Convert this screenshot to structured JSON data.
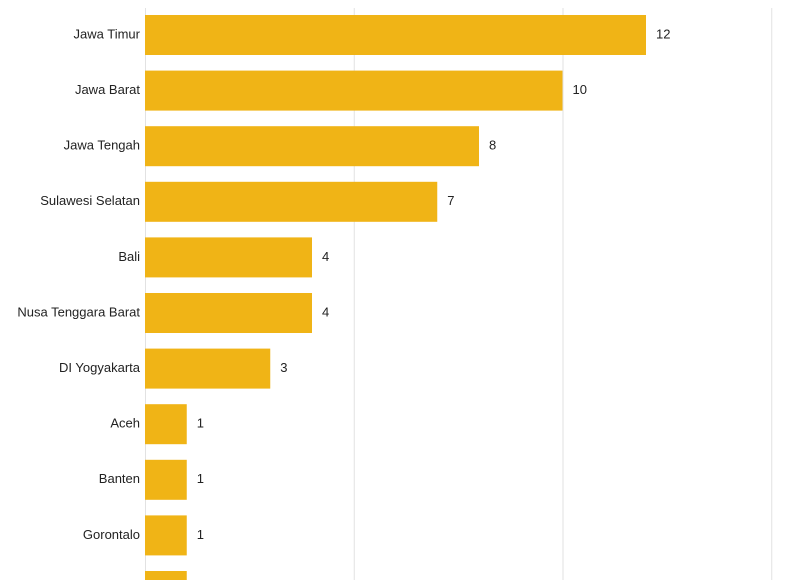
{
  "chart_data": {
    "type": "bar",
    "orientation": "horizontal",
    "categories": [
      "Jawa Timur",
      "Jawa Barat",
      "Jawa Tengah",
      "Sulawesi Selatan",
      "Bali",
      "Nusa Tenggara Barat",
      "DI Yogyakarta",
      "Aceh",
      "Banten",
      "Gorontalo"
    ],
    "values": [
      12,
      10,
      8,
      7,
      4,
      4,
      3,
      1,
      1,
      1
    ],
    "value_labels": [
      "12",
      "10",
      "8",
      "7",
      "4",
      "4",
      "3",
      "1",
      "1",
      "1"
    ],
    "partial_bar_below": {
      "value": 1
    },
    "title": "",
    "xlabel": "",
    "ylabel": "",
    "xlim": [
      0,
      15
    ],
    "grid": true,
    "legend": "none",
    "bar_color": "#F0B416",
    "grid_color": "#E2E2E2",
    "text_color": "#222222"
  }
}
